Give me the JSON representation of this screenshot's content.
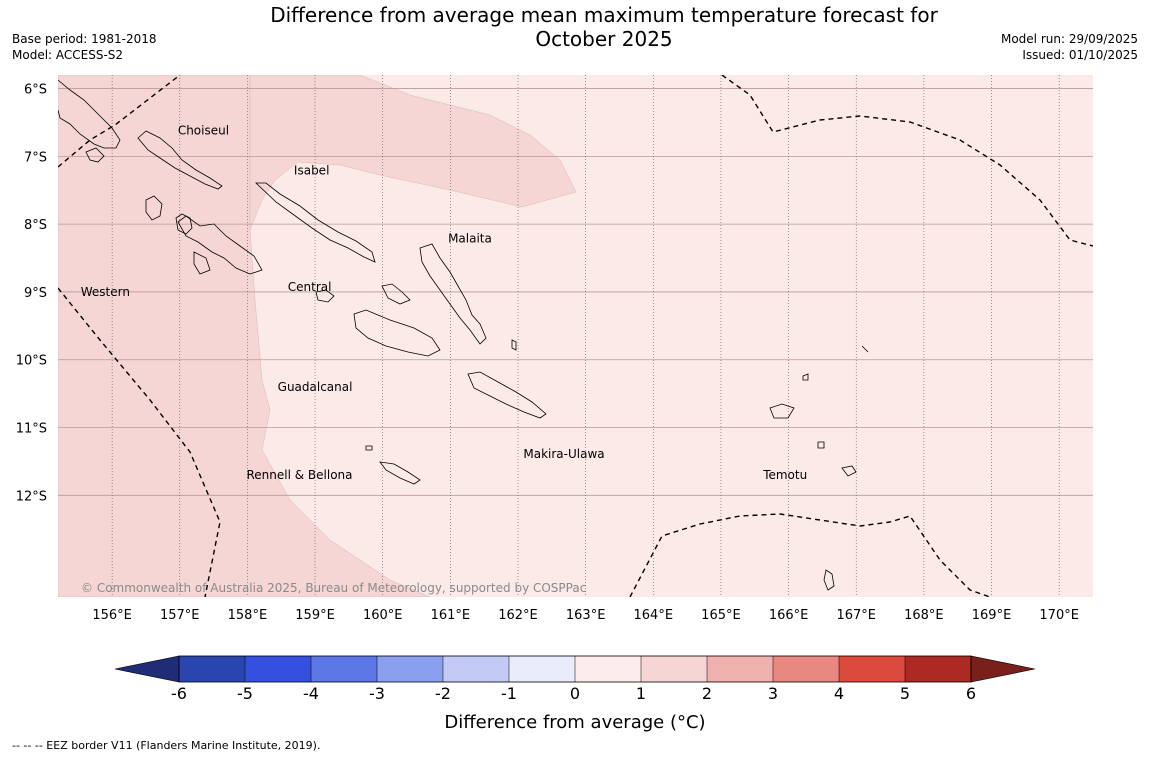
{
  "title_line1": "Difference from average mean maximum temperature forecast for",
  "title_line2": "October 2025",
  "base_period": "Base period: 1981-2018",
  "model": "Model: ACCESS-S2",
  "model_run": "Model run: 29/09/2025",
  "issued": "Issued: 01/10/2025",
  "copyright": "© Commonwealth of Australia 2025, Bureau of Meteorology, supported by COSPPac",
  "footer_note": "--  --  -- EEZ border V11 (Flanders Marine Institute, 2019).",
  "colors": {
    "band_2_3": "#f5d6d4",
    "band_1_2": "#fbeae8",
    "eez_border": "#000000",
    "coast": "#000000"
  },
  "map": {
    "lon_range": [
      155.2,
      170.5
    ],
    "lat_range": [
      -13.5,
      -5.8
    ],
    "lat_labels": [
      {
        "lat": -6,
        "text": "6°S"
      },
      {
        "lat": -7,
        "text": "7°S"
      },
      {
        "lat": -8,
        "text": "8°S"
      },
      {
        "lat": -9,
        "text": "9°S"
      },
      {
        "lat": -10,
        "text": "10°S"
      },
      {
        "lat": -11,
        "text": "11°S"
      },
      {
        "lat": -12,
        "text": "12°S"
      }
    ],
    "lon_labels": [
      {
        "lon": 156,
        "text": "156°E"
      },
      {
        "lon": 157,
        "text": "157°E"
      },
      {
        "lon": 158,
        "text": "158°E"
      },
      {
        "lon": 159,
        "text": "159°E"
      },
      {
        "lon": 160,
        "text": "160°E"
      },
      {
        "lon": 161,
        "text": "161°E"
      },
      {
        "lon": 162,
        "text": "162°E"
      },
      {
        "lon": 163,
        "text": "163°E"
      },
      {
        "lon": 164,
        "text": "164°E"
      },
      {
        "lon": 165,
        "text": "165°E"
      },
      {
        "lon": 166,
        "text": "166°E"
      },
      {
        "lon": 167,
        "text": "167°E"
      },
      {
        "lon": 168,
        "text": "168°E"
      },
      {
        "lon": 169,
        "text": "169°E"
      },
      {
        "lon": 170,
        "text": "170°E"
      }
    ],
    "region_labels": [
      {
        "text": "Choiseul",
        "lon": 157.35,
        "lat": -6.62
      },
      {
        "text": "Isabel",
        "lon": 158.95,
        "lat": -7.21
      },
      {
        "text": "Malaita",
        "lon": 161.29,
        "lat": -8.21
      },
      {
        "text": "Western",
        "lon": 155.9,
        "lat": -9.0
      },
      {
        "text": "Central",
        "lon": 158.92,
        "lat": -8.93
      },
      {
        "text": "Guadalcanal",
        "lon": 159.0,
        "lat": -10.4
      },
      {
        "text": "Makira-Ulawa",
        "lon": 162.68,
        "lat": -11.39
      },
      {
        "text": "Rennell & Bellona",
        "lon": 158.77,
        "lat": -11.7
      },
      {
        "text": "Temotu",
        "lon": 165.95,
        "lat": -11.7
      }
    ]
  },
  "colorbar": {
    "bounds": [
      -6,
      -5,
      -4,
      -3,
      -2,
      -1,
      0,
      1,
      2,
      3,
      4,
      5,
      6
    ],
    "colors": [
      "#2a45ae",
      "#3550de",
      "#5c76e6",
      "#8a9fee",
      "#c3cbf5",
      "#e8ecfb",
      "#fcecec",
      "#f6d6d5",
      "#eeb1ae",
      "#e88880",
      "#dc4a3e",
      "#ac2924"
    ],
    "under_color": "#1f2c78",
    "over_color": "#7a1f1c",
    "label": "Difference from average (°C)"
  }
}
